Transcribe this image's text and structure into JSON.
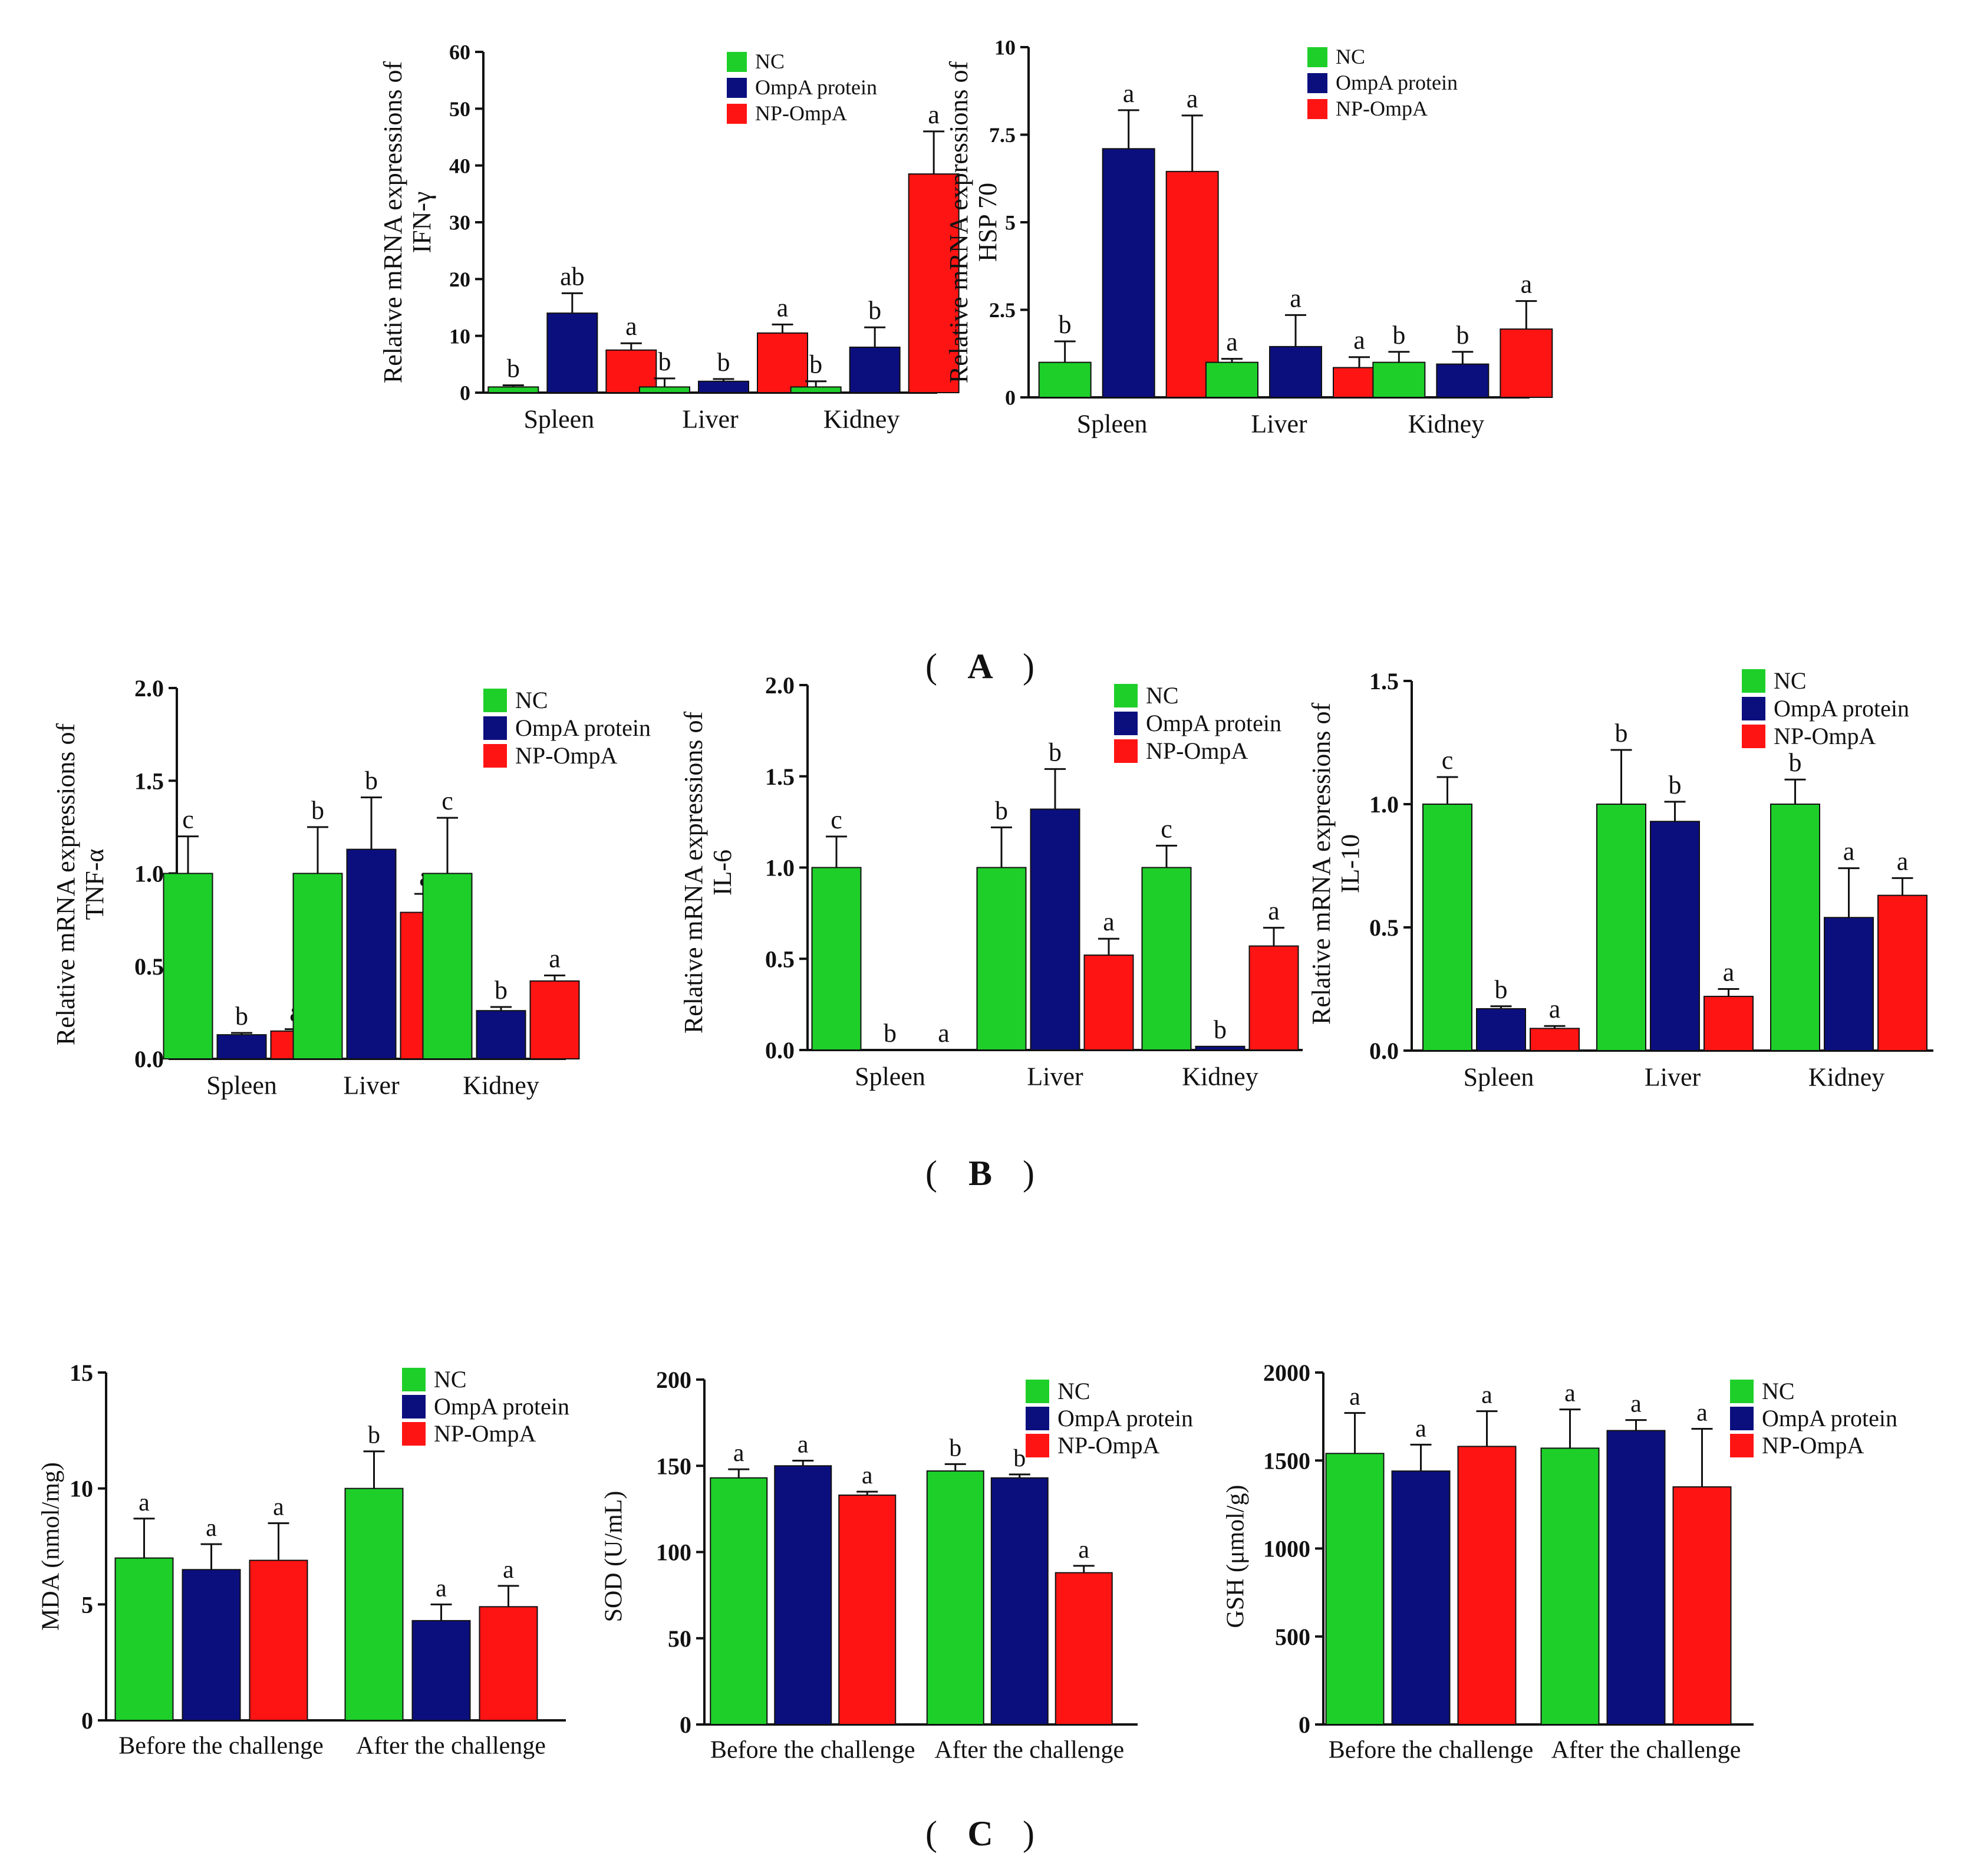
{
  "series_names": [
    "NC",
    "OmpA protein",
    "NP-OmpA"
  ],
  "colors": {
    "NC": "#1ecf2a",
    "OmpA protein": "#0b0f7e",
    "NP-OmpA": "#ff1414",
    "axis": "#111111"
  },
  "panel_labels": {
    "A": "A",
    "B": "B",
    "C": "C"
  },
  "chart_data": [
    {
      "id": "ifn",
      "panel": "A",
      "type": "bar",
      "ylabel": [
        "Relative mRNA expressions of",
        "IFN-γ"
      ],
      "categories": [
        "Spleen",
        "Liver",
        "Kidney"
      ],
      "ylim": [
        0,
        60
      ],
      "yticks": [
        0,
        10,
        20,
        30,
        40,
        50,
        60
      ],
      "ytick_labels": [
        "0",
        "10",
        "20",
        "30",
        "40",
        "50",
        "60"
      ],
      "legend": "top-right",
      "series": [
        {
          "name": "NC",
          "values": [
            1.0,
            1.0,
            1.0
          ],
          "errors": [
            0.3,
            1.5,
            1.0
          ],
          "letters": [
            "b",
            "b",
            "b"
          ]
        },
        {
          "name": "OmpA protein",
          "values": [
            14,
            2,
            8
          ],
          "errors": [
            3.5,
            0.4,
            3.5
          ],
          "letters": [
            "ab",
            "b",
            "b"
          ]
        },
        {
          "name": "NP-OmpA",
          "values": [
            7.5,
            10.5,
            38.5
          ],
          "errors": [
            1.2,
            1.5,
            7.5
          ],
          "letters": [
            "a",
            "a",
            "a"
          ]
        }
      ]
    },
    {
      "id": "hsp",
      "panel": "A",
      "type": "bar",
      "ylabel": [
        "Relative mRNA expressions of",
        "HSP 70"
      ],
      "categories": [
        "Spleen",
        "Liver",
        "Kidney"
      ],
      "ylim": [
        0,
        10
      ],
      "yticks": [
        0,
        2.5,
        5,
        7.5,
        10
      ],
      "ytick_labels": [
        "0",
        "2.5",
        "5",
        "7.5",
        "10"
      ],
      "legend": "top-right",
      "series": [
        {
          "name": "NC",
          "values": [
            1.0,
            1.0,
            1.0
          ],
          "errors": [
            0.6,
            0.1,
            0.3
          ],
          "letters": [
            "b",
            "a",
            "b"
          ]
        },
        {
          "name": "OmpA protein",
          "values": [
            7.1,
            1.45,
            0.95
          ],
          "errors": [
            1.1,
            0.9,
            0.35
          ],
          "letters": [
            "a",
            "a",
            "b"
          ]
        },
        {
          "name": "NP-OmpA",
          "values": [
            6.45,
            0.85,
            1.95
          ],
          "errors": [
            1.6,
            0.3,
            0.8
          ],
          "letters": [
            "a",
            "a",
            "a"
          ]
        }
      ]
    },
    {
      "id": "tnf",
      "panel": "B",
      "type": "bar",
      "ylabel": [
        "Relative mRNA expressions of",
        "TNF-α"
      ],
      "categories": [
        "Spleen",
        "Liver",
        "Kidney"
      ],
      "ylim": [
        0,
        2.0
      ],
      "yticks": [
        0,
        0.5,
        1.0,
        1.5,
        2.0
      ],
      "ytick_labels": [
        "0.0",
        "0.5",
        "1.0",
        "1.5",
        "2.0"
      ],
      "legend": "top-right",
      "series": [
        {
          "name": "NC",
          "values": [
            1.0,
            1.0,
            1.0
          ],
          "errors": [
            0.2,
            0.25,
            0.3
          ],
          "letters": [
            "c",
            "b",
            "c"
          ]
        },
        {
          "name": "OmpA protein",
          "values": [
            0.13,
            1.13,
            0.26
          ],
          "errors": [
            0.01,
            0.28,
            0.02
          ],
          "letters": [
            "b",
            "b",
            "b"
          ]
        },
        {
          "name": "NP-OmpA",
          "values": [
            0.15,
            0.79,
            0.42
          ],
          "errors": [
            0.01,
            0.1,
            0.03
          ],
          "letters": [
            "a",
            "a",
            "a"
          ]
        }
      ]
    },
    {
      "id": "il6",
      "panel": "B",
      "type": "bar",
      "ylabel": [
        "Relative mRNA expressions of",
        "IL-6"
      ],
      "categories": [
        "Spleen",
        "Liver",
        "Kidney"
      ],
      "ylim": [
        0,
        2.0
      ],
      "yticks": [
        0,
        0.5,
        1.0,
        1.5,
        2.0
      ],
      "ytick_labels": [
        "0.0",
        "0.5",
        "1.0",
        "1.5",
        "2.0"
      ],
      "legend": "top-right",
      "series": [
        {
          "name": "NC",
          "values": [
            1.0,
            1.0,
            1.0
          ],
          "errors": [
            0.17,
            0.22,
            0.12
          ],
          "letters": [
            "c",
            "b",
            "c"
          ]
        },
        {
          "name": "OmpA protein",
          "values": [
            0,
            1.32,
            0.02
          ],
          "errors": [
            0,
            0.22,
            0
          ],
          "letters": [
            "b",
            "b",
            "b"
          ]
        },
        {
          "name": "NP-OmpA",
          "values": [
            0,
            0.52,
            0.57
          ],
          "errors": [
            0,
            0.09,
            0.1
          ],
          "letters": [
            "a",
            "a",
            "a"
          ]
        }
      ]
    },
    {
      "id": "il10",
      "panel": "B",
      "type": "bar",
      "ylabel": [
        "Relative mRNA expressions of",
        "IL-10"
      ],
      "categories": [
        "Spleen",
        "Liver",
        "Kidney"
      ],
      "ylim": [
        0,
        1.5
      ],
      "yticks": [
        0,
        0.5,
        1.0,
        1.5
      ],
      "ytick_labels": [
        "0.0",
        "0.5",
        "1.0",
        "1.5"
      ],
      "legend": "top-right",
      "series": [
        {
          "name": "NC",
          "values": [
            1.0,
            1.0,
            1.0
          ],
          "errors": [
            0.11,
            0.22,
            0.1
          ],
          "letters": [
            "c",
            "b",
            "b"
          ]
        },
        {
          "name": "OmpA protein",
          "values": [
            0.17,
            0.93,
            0.54
          ],
          "errors": [
            0.01,
            0.08,
            0.2
          ],
          "letters": [
            "b",
            "b",
            "a"
          ]
        },
        {
          "name": "NP-OmpA",
          "values": [
            0.09,
            0.22,
            0.63
          ],
          "errors": [
            0.01,
            0.03,
            0.07
          ],
          "letters": [
            "a",
            "a",
            "a"
          ]
        }
      ]
    },
    {
      "id": "mda",
      "panel": "C",
      "type": "bar",
      "ylabel": [
        "MDA (nmol/mg)"
      ],
      "categories": [
        "Before the challenge",
        "After the challenge"
      ],
      "ylim": [
        0,
        15
      ],
      "yticks": [
        0,
        5,
        10,
        15
      ],
      "ytick_labels": [
        "0",
        "5",
        "10",
        "15"
      ],
      "legend": "top-right",
      "series": [
        {
          "name": "NC",
          "values": [
            7.0,
            10.0
          ],
          "errors": [
            1.7,
            1.6
          ],
          "letters": [
            "a",
            "b"
          ]
        },
        {
          "name": "OmpA protein",
          "values": [
            6.5,
            4.3
          ],
          "errors": [
            1.1,
            0.7
          ],
          "letters": [
            "a",
            "a"
          ]
        },
        {
          "name": "NP-OmpA",
          "values": [
            6.9,
            4.9
          ],
          "errors": [
            1.6,
            0.9
          ],
          "letters": [
            "a",
            "a"
          ]
        }
      ]
    },
    {
      "id": "sod",
      "panel": "C",
      "type": "bar",
      "ylabel": [
        "SOD (U/mL)"
      ],
      "categories": [
        "Before the challenge",
        "After the challenge"
      ],
      "ylim": [
        0,
        200
      ],
      "yticks": [
        0,
        50,
        100,
        150,
        200
      ],
      "ytick_labels": [
        "0",
        "50",
        "100",
        "150",
        "200"
      ],
      "legend": "top-right",
      "series": [
        {
          "name": "NC",
          "values": [
            143,
            147
          ],
          "errors": [
            5,
            4
          ],
          "letters": [
            "a",
            "b"
          ]
        },
        {
          "name": "OmpA protein",
          "values": [
            150,
            143
          ],
          "errors": [
            3,
            2
          ],
          "letters": [
            "a",
            "b"
          ]
        },
        {
          "name": "NP-OmpA",
          "values": [
            133,
            88
          ],
          "errors": [
            2,
            4
          ],
          "letters": [
            "a",
            "a"
          ]
        }
      ]
    },
    {
      "id": "gsh",
      "panel": "C",
      "type": "bar",
      "ylabel": [
        "GSH (μmol/g)"
      ],
      "categories": [
        "Before the challenge",
        "After the challenge"
      ],
      "ylim": [
        0,
        2000
      ],
      "yticks": [
        0,
        500,
        1000,
        1500,
        2000
      ],
      "ytick_labels": [
        "0",
        "500",
        "1000",
        "1500",
        "2000"
      ],
      "legend": "top-right",
      "series": [
        {
          "name": "NC",
          "values": [
            1540,
            1570
          ],
          "errors": [
            230,
            220
          ],
          "letters": [
            "a",
            "a"
          ]
        },
        {
          "name": "OmpA protein",
          "values": [
            1440,
            1670
          ],
          "errors": [
            150,
            60
          ],
          "letters": [
            "a",
            "a"
          ]
        },
        {
          "name": "NP-OmpA",
          "values": [
            1580,
            1350
          ],
          "errors": [
            200,
            330
          ],
          "letters": [
            "a",
            "a"
          ]
        }
      ]
    }
  ]
}
